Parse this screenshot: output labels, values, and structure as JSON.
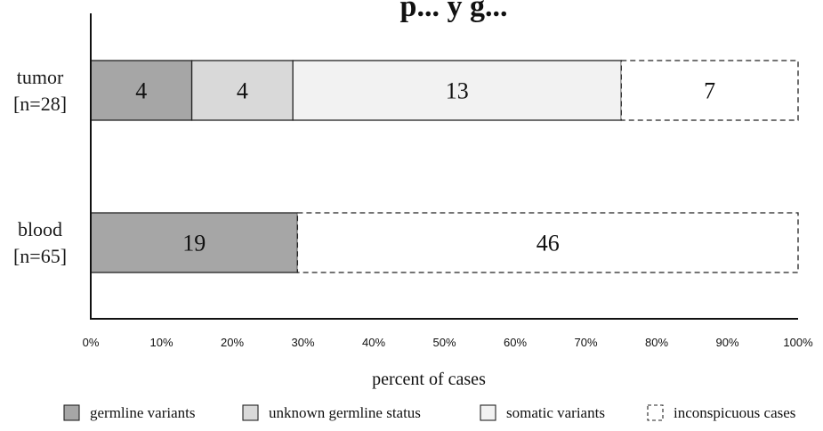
{
  "chart_data": {
    "type": "bar",
    "orientation": "horizontal",
    "stacked": true,
    "normalized_percent": true,
    "title_fragment": "p... y g...",
    "categories": [
      [
        "tumor",
        "[n=28]"
      ],
      [
        "blood",
        "[n=65]"
      ]
    ],
    "series": [
      {
        "name": "germline variants",
        "values": [
          4,
          19
        ],
        "color": "#a6a6a6",
        "style": "solid"
      },
      {
        "name": "unknown germline status",
        "values": [
          4,
          0
        ],
        "color": "#d9d9d9",
        "style": "solid"
      },
      {
        "name": "somatic variants",
        "values": [
          13,
          0
        ],
        "color": "#f2f2f2",
        "style": "solid"
      },
      {
        "name": "inconspicuous cases",
        "values": [
          7,
          46
        ],
        "color": "#ffffff",
        "style": "dashed"
      }
    ],
    "xlim": [
      0,
      100
    ],
    "xticks": [
      "0%",
      "10%",
      "20%",
      "30%",
      "40%",
      "50%",
      "60%",
      "70%",
      "80%",
      "90%",
      "100%"
    ],
    "xlabel": "percent of cases",
    "ylabel": "",
    "legend_position": "bottom",
    "grid": false
  }
}
